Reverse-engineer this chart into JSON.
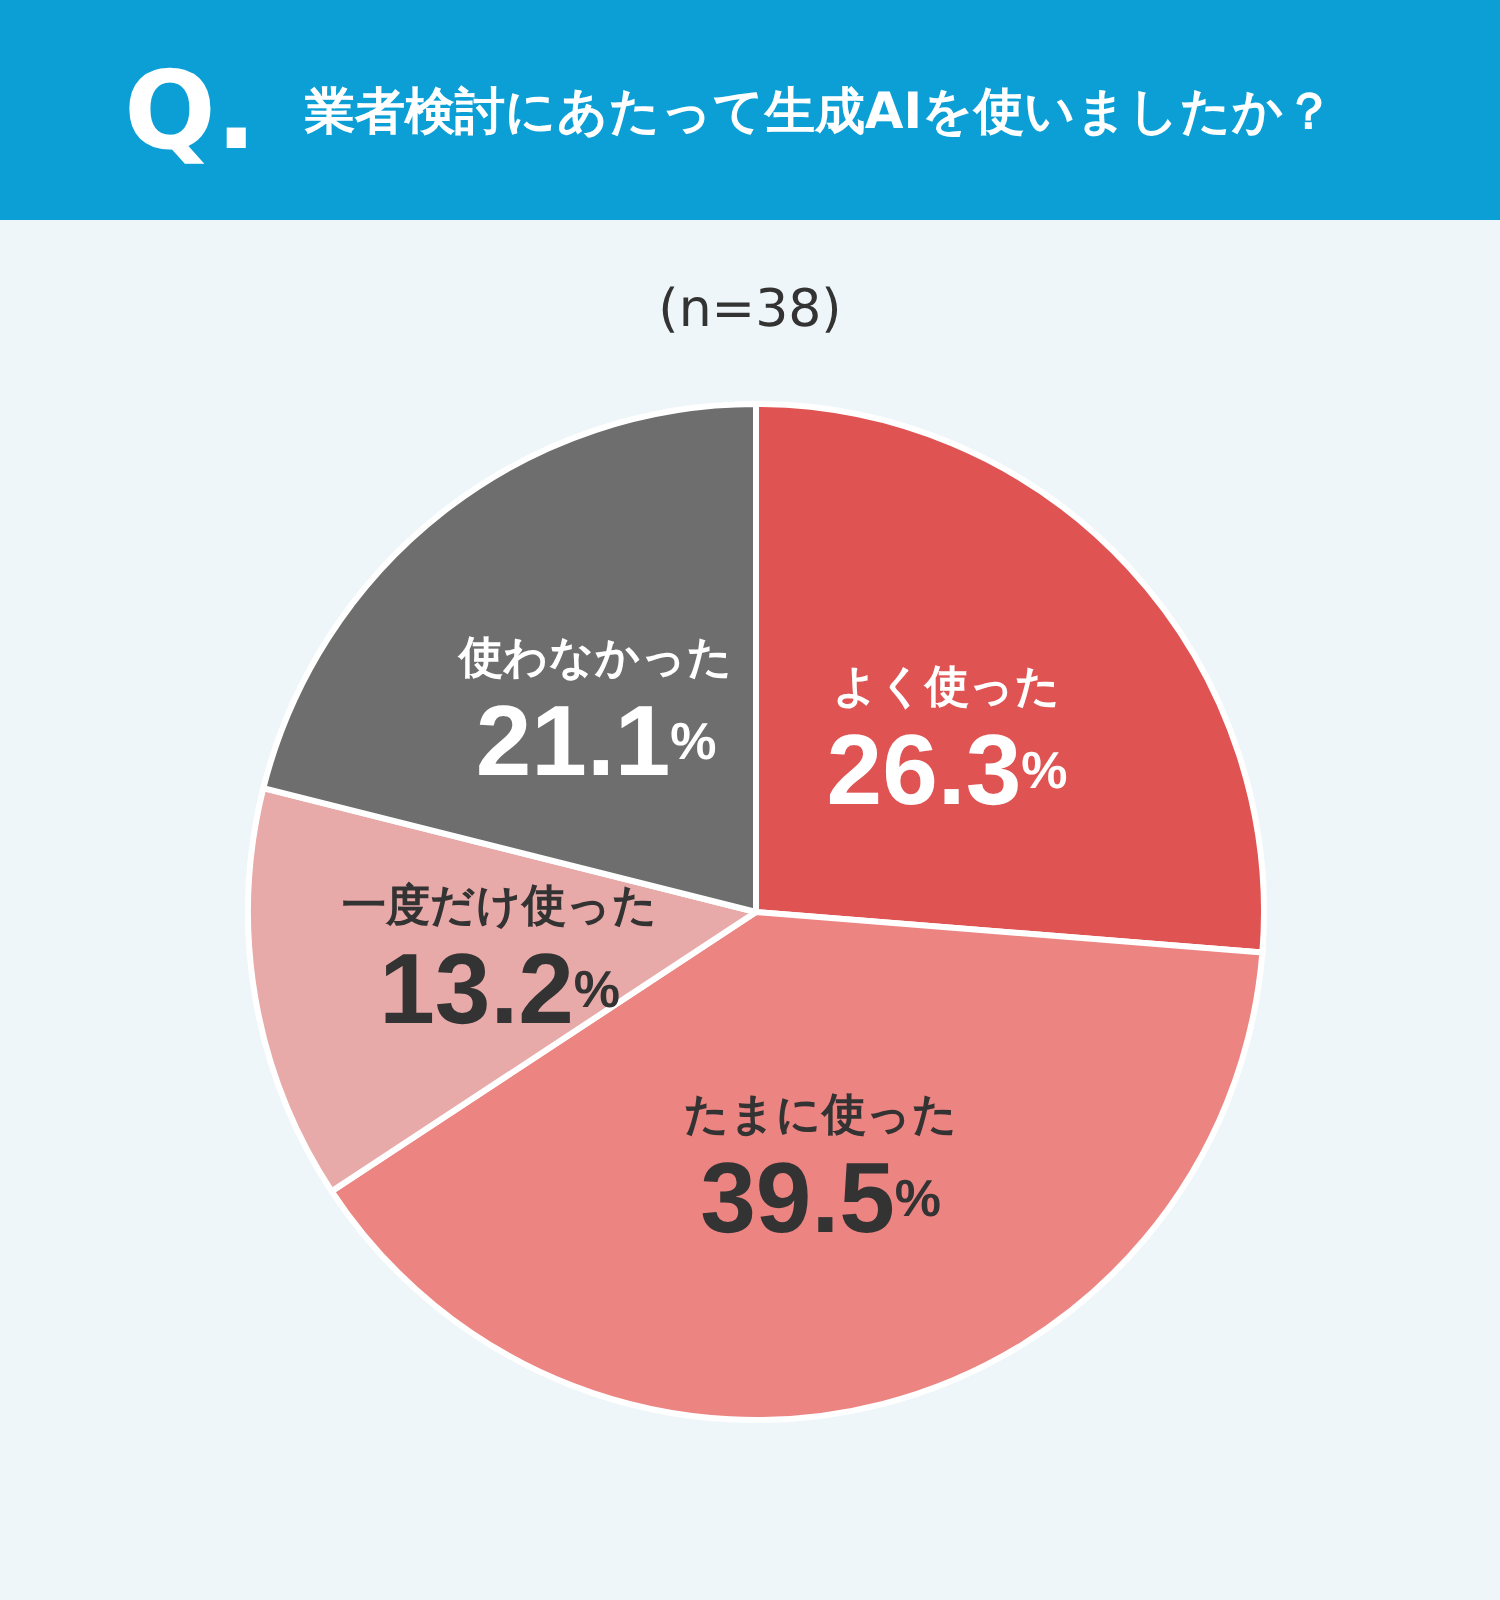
{
  "chart_data": {
    "type": "pie",
    "title": "業者検討にあたって生成AIを使いましたか？",
    "subtitle": "(n=38)",
    "annotations": [
      "Q."
    ],
    "categories": [
      "よく使った",
      "たまに使った",
      "一度だけ使った",
      "使わなかった"
    ],
    "values": [
      26.3,
      39.5,
      13.2,
      21.1
    ],
    "colors": [
      "#e05353",
      "#ec8482",
      "#e8aaa8",
      "#6e6e6e"
    ],
    "value_labels": [
      "26.3%",
      "39.5%",
      "13.2%",
      "21.1%"
    ],
    "legend": false
  }
}
